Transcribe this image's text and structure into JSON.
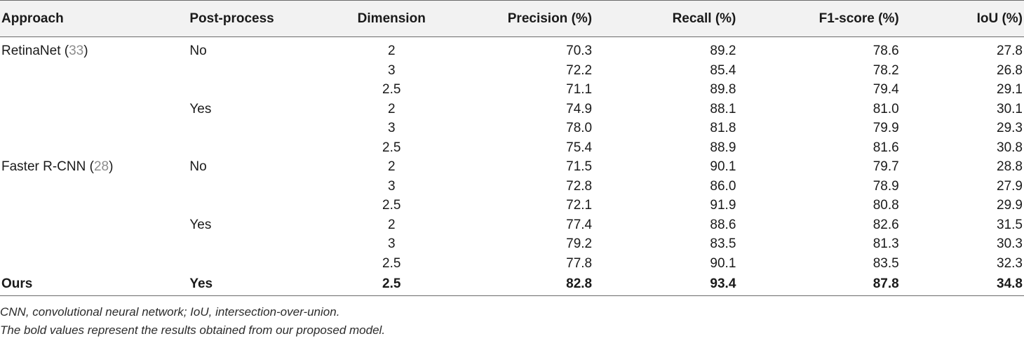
{
  "table": {
    "headers": {
      "approach": "Approach",
      "post_process": "Post-process",
      "dimension": "Dimension",
      "precision": "Precision (%)",
      "recall": "Recall (%)",
      "f1": "F1-score (%)",
      "iou": "IoU (%)"
    },
    "rows": [
      {
        "approach": "RetinaNet (",
        "ref": "33",
        "approach_close": ")",
        "post": "No",
        "dim": "2",
        "precision": "70.3",
        "recall": "89.2",
        "f1": "78.6",
        "iou": "27.8"
      },
      {
        "approach": "",
        "ref": "",
        "approach_close": "",
        "post": "",
        "dim": "3",
        "precision": "72.2",
        "recall": "85.4",
        "f1": "78.2",
        "iou": "26.8"
      },
      {
        "approach": "",
        "ref": "",
        "approach_close": "",
        "post": "",
        "dim": "2.5",
        "precision": "71.1",
        "recall": "89.8",
        "f1": "79.4",
        "iou": "29.1"
      },
      {
        "approach": "",
        "ref": "",
        "approach_close": "",
        "post": "Yes",
        "dim": "2",
        "precision": "74.9",
        "recall": "88.1",
        "f1": "81.0",
        "iou": "30.1"
      },
      {
        "approach": "",
        "ref": "",
        "approach_close": "",
        "post": "",
        "dim": "3",
        "precision": "78.0",
        "recall": "81.8",
        "f1": "79.9",
        "iou": "29.3"
      },
      {
        "approach": "",
        "ref": "",
        "approach_close": "",
        "post": "",
        "dim": "2.5",
        "precision": "75.4",
        "recall": "88.9",
        "f1": "81.6",
        "iou": "30.8"
      },
      {
        "approach": "Faster R-CNN (",
        "ref": "28",
        "approach_close": ")",
        "post": "No",
        "dim": "2",
        "precision": "71.5",
        "recall": "90.1",
        "f1": "79.7",
        "iou": "28.8"
      },
      {
        "approach": "",
        "ref": "",
        "approach_close": "",
        "post": "",
        "dim": "3",
        "precision": "72.8",
        "recall": "86.0",
        "f1": "78.9",
        "iou": "27.9"
      },
      {
        "approach": "",
        "ref": "",
        "approach_close": "",
        "post": "",
        "dim": "2.5",
        "precision": "72.1",
        "recall": "91.9",
        "f1": "80.8",
        "iou": "29.9"
      },
      {
        "approach": "",
        "ref": "",
        "approach_close": "",
        "post": "Yes",
        "dim": "2",
        "precision": "77.4",
        "recall": "88.6",
        "f1": "82.6",
        "iou": "31.5"
      },
      {
        "approach": "",
        "ref": "",
        "approach_close": "",
        "post": "",
        "dim": "3",
        "precision": "79.2",
        "recall": "83.5",
        "f1": "81.3",
        "iou": "30.3"
      },
      {
        "approach": "",
        "ref": "",
        "approach_close": "",
        "post": "",
        "dim": "2.5",
        "precision": "77.8",
        "recall": "90.1",
        "f1": "83.5",
        "iou": "32.3"
      }
    ],
    "ours": {
      "approach": "Ours",
      "post": "Yes",
      "dim": "2.5",
      "precision": "82.8",
      "recall": "93.4",
      "f1": "87.8",
      "iou": "34.8"
    }
  },
  "footnotes": [
    "CNN, convolutional neural network; IoU, intersection-over-union.",
    "The bold values represent the results obtained from our proposed model."
  ],
  "colors": {
    "header_background": "#f2f2f2",
    "rule": "#6b6b6b",
    "reference_link": "#8c8c8c"
  }
}
